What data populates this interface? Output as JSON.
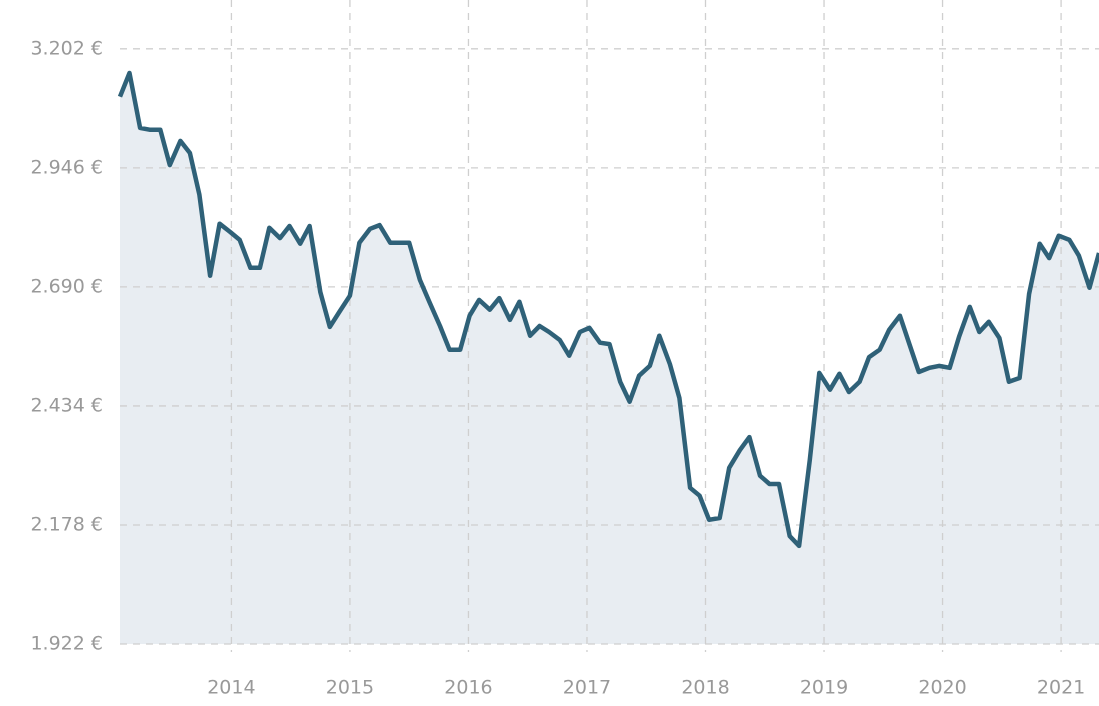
{
  "chart_data": {
    "type": "line",
    "x": [
      2013.06,
      2013.14,
      2013.23,
      2013.31,
      2013.4,
      2013.48,
      2013.57,
      2013.65,
      2013.73,
      2013.82,
      2013.9,
      2013.99,
      2014.07,
      2014.16,
      2014.24,
      2014.32,
      2014.41,
      2014.49,
      2014.58,
      2014.66,
      2014.75,
      2014.83,
      2014.91,
      2015.0,
      2015.08,
      2015.17,
      2015.25,
      2015.34,
      2015.42,
      2015.5,
      2015.59,
      2015.67,
      2015.76,
      2015.84,
      2015.93,
      2016.01,
      2016.09,
      2016.18,
      2016.26,
      2016.35,
      2016.43,
      2016.52,
      2016.6,
      2016.68,
      2016.77,
      2016.85,
      2016.94,
      2017.02,
      2017.11,
      2017.19,
      2017.28,
      2017.36,
      2017.44,
      2017.53,
      2017.61,
      2017.7,
      2017.78,
      2017.87,
      2017.95,
      2018.03,
      2018.12,
      2018.2,
      2018.29,
      2018.37,
      2018.46,
      2018.54,
      2018.62,
      2018.71,
      2018.79,
      2018.88,
      2018.96,
      2019.05,
      2019.13,
      2019.21,
      2019.3,
      2019.38,
      2019.47,
      2019.55,
      2019.64,
      2019.72,
      2019.8,
      2019.89,
      2019.97,
      2020.06,
      2020.14,
      2020.23,
      2020.31,
      2020.39,
      2020.48,
      2020.56,
      2020.65,
      2020.73,
      2020.82,
      2020.9,
      2020.98,
      2021.07,
      2021.15,
      2021.24,
      2021.32
    ],
    "values": [
      3099,
      3150,
      3032,
      3028,
      3028,
      2952,
      3004,
      2978,
      2888,
      2714,
      2826,
      2808,
      2791,
      2731,
      2731,
      2817,
      2795,
      2821,
      2783,
      2821,
      2679,
      2604,
      2636,
      2671,
      2785,
      2815,
      2823,
      2785,
      2785,
      2785,
      2705,
      2658,
      2606,
      2555,
      2555,
      2628,
      2662,
      2641,
      2666,
      2619,
      2658,
      2585,
      2606,
      2593,
      2576,
      2542,
      2593,
      2602,
      2570,
      2567,
      2486,
      2443,
      2499,
      2520,
      2585,
      2524,
      2451,
      2258,
      2241,
      2189,
      2193,
      2301,
      2339,
      2367,
      2284,
      2266,
      2266,
      2154,
      2133,
      2318,
      2505,
      2469,
      2503,
      2464,
      2486,
      2539,
      2555,
      2598,
      2628,
      2567,
      2507,
      2516,
      2520,
      2516,
      2583,
      2647,
      2593,
      2615,
      2580,
      2486,
      2494,
      2675,
      2783,
      2752,
      2800,
      2791,
      2757,
      2688,
      2763
    ],
    "color": "#2f6178",
    "area_color": "#e8edf2",
    "xlim": [
      2013.06,
      2021.32
    ],
    "xticks": [
      2014,
      2015,
      2016,
      2017,
      2018,
      2019,
      2020,
      2021
    ],
    "ylim": [
      1922,
      3307
    ],
    "yticks": [
      {
        "value": 1922,
        "label": "1.922 €"
      },
      {
        "value": 2178,
        "label": "2.178 €"
      },
      {
        "value": 2434,
        "label": "2.434 €"
      },
      {
        "value": 2690,
        "label": "2.690 €"
      },
      {
        "value": 2946,
        "label": "2.946 €"
      },
      {
        "value": 3202,
        "label": "3.202 €"
      }
    ],
    "grid": true
  }
}
